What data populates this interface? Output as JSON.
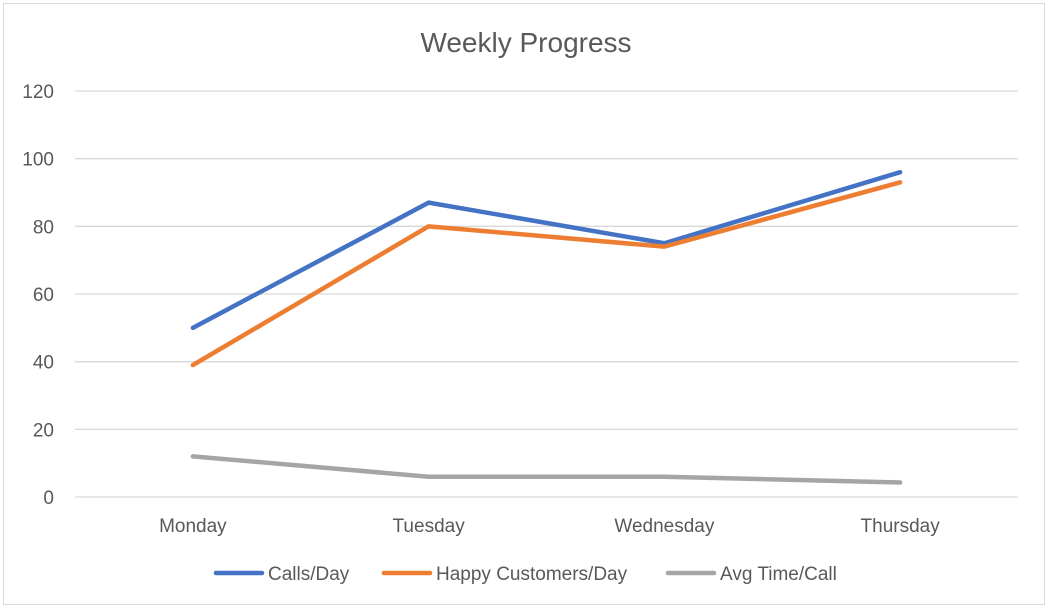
{
  "chart_data": {
    "type": "line",
    "title": "Weekly Progress",
    "xlabel": "",
    "ylabel": "",
    "categories": [
      "Monday",
      "Tuesday",
      "Wednesday",
      "Thursday"
    ],
    "ylim": [
      0,
      120
    ],
    "yticks": [
      0,
      20,
      40,
      60,
      80,
      100,
      120
    ],
    "grid": true,
    "legend_position": "bottom",
    "series": [
      {
        "name": "Calls/Day",
        "color": "#4472c4",
        "values": [
          50,
          87,
          75,
          96
        ]
      },
      {
        "name": "Happy Customers/Day",
        "color": "#ed7d31",
        "values": [
          39,
          80,
          74,
          93
        ]
      },
      {
        "name": "Avg Time/Call",
        "color": "#a5a5a5",
        "values": [
          12,
          6,
          6,
          4.3
        ]
      }
    ]
  }
}
